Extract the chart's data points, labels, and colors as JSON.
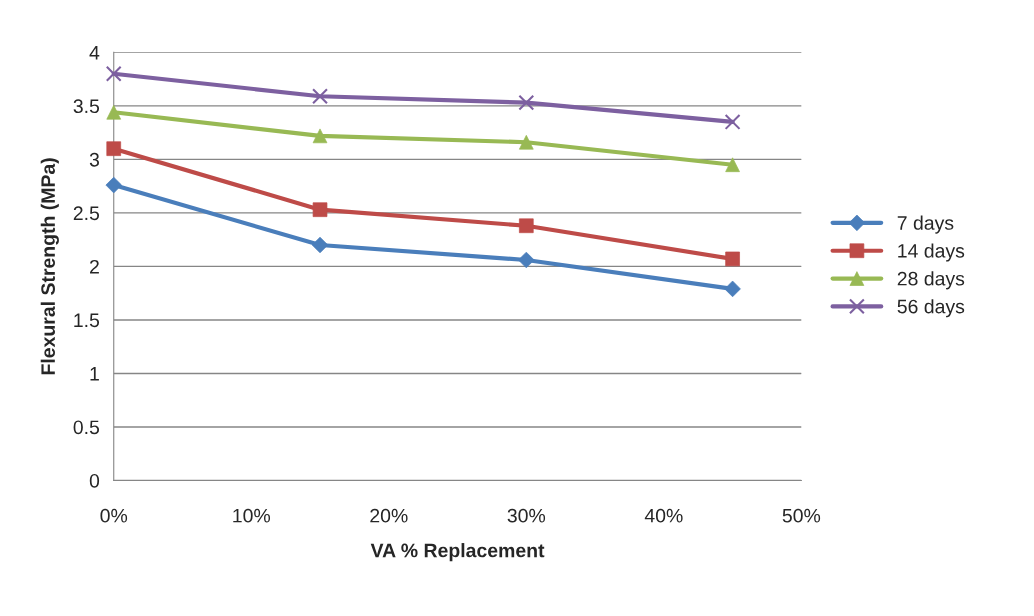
{
  "chart_data": {
    "type": "line",
    "xlabel": "VA % Replacement",
    "ylabel": "Flexural Strength (MPa)",
    "x": [
      0,
      15,
      30,
      45
    ],
    "xlim": [
      0,
      50
    ],
    "xticks": [
      {
        "value": 0,
        "label": "0%"
      },
      {
        "value": 10,
        "label": "10%"
      },
      {
        "value": 20,
        "label": "20%"
      },
      {
        "value": 30,
        "label": "30%"
      },
      {
        "value": 40,
        "label": "40%"
      },
      {
        "value": 50,
        "label": "50%"
      }
    ],
    "ylim": [
      0,
      4
    ],
    "yticks": [
      0,
      0.5,
      1,
      1.5,
      2,
      2.5,
      3,
      3.5,
      4
    ],
    "grid": "y",
    "legend": "right",
    "series": [
      {
        "name": "7 days",
        "color": "#4a7ebb",
        "marker": "diamond",
        "values": [
          2.76,
          2.2,
          2.06,
          1.79
        ]
      },
      {
        "name": "14 days",
        "color": "#be4b48",
        "marker": "square",
        "values": [
          3.1,
          2.53,
          2.38,
          2.07
        ]
      },
      {
        "name": "28 days",
        "color": "#98b954",
        "marker": "triangle",
        "values": [
          3.44,
          3.22,
          3.16,
          2.95
        ]
      },
      {
        "name": "56 days",
        "color": "#7d60a0",
        "marker": "cross",
        "values": [
          3.8,
          3.59,
          3.53,
          3.35
        ]
      }
    ]
  }
}
